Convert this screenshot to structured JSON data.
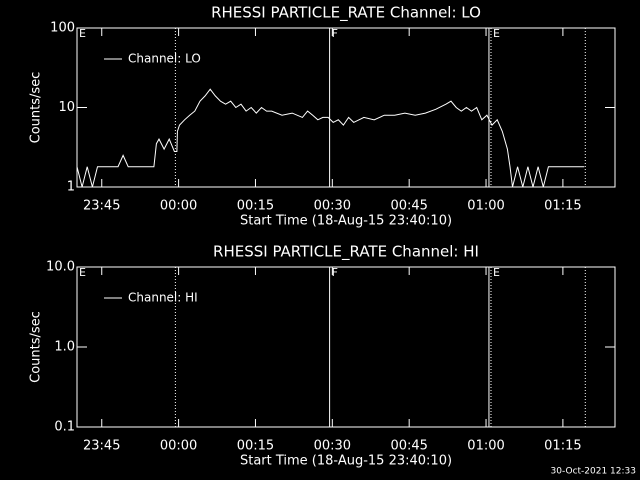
{
  "chart_data": [
    {
      "type": "line",
      "title": "RHESSI PARTICLE_RATE Channel: LO",
      "x_label": "Start Time (18-Aug-15 23:40:10)",
      "y_label": "Counts/sec",
      "log_y": true,
      "xlim": [
        0,
        105
      ],
      "ylim": [
        1,
        100
      ],
      "xticks": [
        {
          "value": 4.83,
          "label": "23:45"
        },
        {
          "value": 19.83,
          "label": "00:00"
        },
        {
          "value": 34.83,
          "label": "00:15"
        },
        {
          "value": 49.83,
          "label": "00:30"
        },
        {
          "value": 64.83,
          "label": "00:45"
        },
        {
          "value": 79.83,
          "label": "01:00"
        },
        {
          "value": 94.83,
          "label": "01:15"
        }
      ],
      "yticks": [
        1,
        10,
        100
      ],
      "vlines": [
        {
          "x": 19.2,
          "style": "dotted"
        },
        {
          "x": 49.3,
          "style": "solid"
        },
        {
          "x": 80.4,
          "style": "solid"
        },
        {
          "x": 80.8,
          "style": "dotted"
        },
        {
          "x": 99.2,
          "style": "dotted"
        }
      ],
      "annotations": [
        {
          "text": "E",
          "x": 0
        },
        {
          "text": "F",
          "x": 49.3
        },
        {
          "text": "E",
          "x": 80.8
        }
      ],
      "series": [
        {
          "name": "Channel: LO",
          "color": "#ffffff",
          "x": [
            0,
            1,
            2,
            3,
            4,
            5,
            6,
            8,
            9,
            10,
            14,
            15,
            15.5,
            16,
            17,
            18,
            19,
            19.5,
            19.6,
            20,
            21,
            22,
            23,
            24,
            25,
            26,
            27,
            28,
            29,
            30,
            31,
            32,
            33,
            34,
            35,
            36,
            37,
            38,
            40,
            42,
            44,
            45,
            46,
            47,
            48,
            49,
            50,
            51,
            52,
            53,
            54,
            56,
            58,
            60,
            62,
            64,
            66,
            68,
            70,
            72,
            73,
            74,
            75,
            76,
            77,
            78,
            79,
            80,
            81,
            82,
            83,
            84,
            84.5,
            85,
            86,
            87,
            88,
            89,
            90,
            91,
            92,
            95,
            99
          ],
          "values": [
            1.8,
            1,
            1.8,
            1,
            1.8,
            1.8,
            1.8,
            1.8,
            2.5,
            1.8,
            1.8,
            1.8,
            3.5,
            4,
            3,
            4,
            2.8,
            2.8,
            5,
            6,
            7,
            8,
            9,
            12,
            14,
            17,
            14,
            12,
            11,
            12,
            10,
            11,
            9,
            10,
            8.5,
            10,
            9,
            9,
            8,
            8.5,
            7.5,
            9,
            8,
            7,
            7.5,
            7.5,
            6.5,
            7,
            6,
            7.5,
            6.5,
            7.5,
            7,
            8,
            8,
            8.5,
            8,
            8.5,
            9.5,
            11,
            12,
            10,
            9,
            10,
            9,
            10,
            7,
            8,
            6,
            7,
            5,
            3,
            1.8,
            1,
            1.8,
            1,
            1.8,
            1,
            1.8,
            1,
            1.8,
            1.8,
            1.8
          ]
        }
      ]
    },
    {
      "type": "line",
      "title": "RHESSI PARTICLE_RATE Channel: HI",
      "x_label": "Start Time (18-Aug-15 23:40:10)",
      "y_label": "Counts/sec",
      "log_y": true,
      "xlim": [
        0,
        105
      ],
      "ylim": [
        0.1,
        10
      ],
      "xticks": [
        {
          "value": 4.83,
          "label": "23:45"
        },
        {
          "value": 19.83,
          "label": "00:00"
        },
        {
          "value": 34.83,
          "label": "00:15"
        },
        {
          "value": 49.83,
          "label": "00:30"
        },
        {
          "value": 64.83,
          "label": "00:45"
        },
        {
          "value": 79.83,
          "label": "01:00"
        },
        {
          "value": 94.83,
          "label": "01:15"
        }
      ],
      "yticks": [
        {
          "value": 0.1,
          "label": "0.1"
        },
        {
          "value": 1,
          "label": "1.0"
        },
        {
          "value": 10,
          "label": "10.0"
        }
      ],
      "vlines": [
        {
          "x": 19.2,
          "style": "dotted"
        },
        {
          "x": 49.3,
          "style": "solid"
        },
        {
          "x": 80.4,
          "style": "solid"
        },
        {
          "x": 80.8,
          "style": "dotted"
        },
        {
          "x": 99.2,
          "style": "dotted"
        }
      ],
      "annotations": [
        {
          "text": "E",
          "x": 0
        },
        {
          "text": "F",
          "x": 49.3
        },
        {
          "text": "E",
          "x": 80.8
        }
      ],
      "series": [
        {
          "name": "Channel: HI",
          "color": "#ffffff",
          "x": [],
          "values": []
        }
      ]
    }
  ],
  "footer": "30-Oct-2021 12:33"
}
